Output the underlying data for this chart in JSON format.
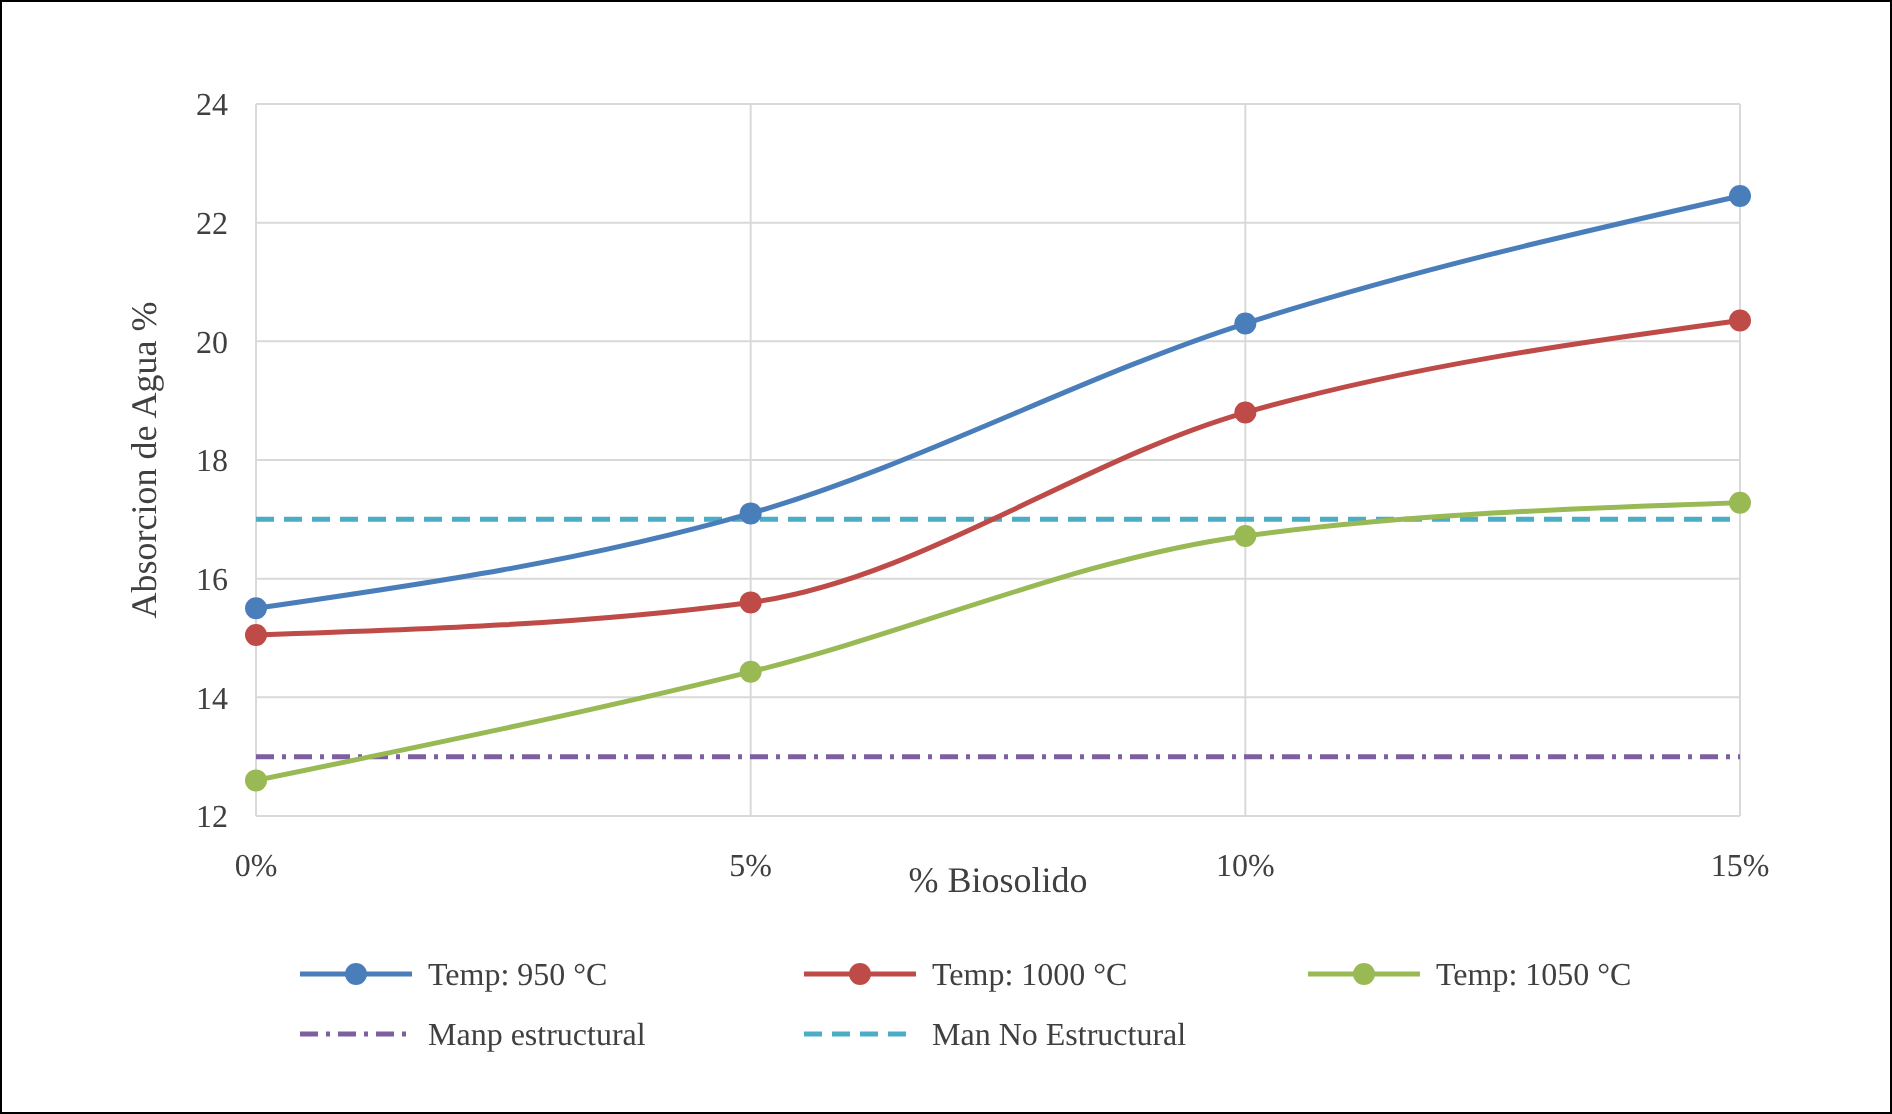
{
  "chart_data": {
    "type": "line",
    "xlabel": "% Biosolido",
    "ylabel": "Absorcion de Agua %",
    "x": [
      0,
      5,
      10,
      15
    ],
    "series": [
      {
        "name": "Temp: 950 °C",
        "color": "#4a7ebb",
        "values": [
          15.5,
          17.1,
          20.3,
          22.45
        ]
      },
      {
        "name": "Temp: 1000 °C",
        "color": "#be4b48",
        "values": [
          15.05,
          15.6,
          18.8,
          20.35
        ]
      },
      {
        "name": "Temp: 1050 °C",
        "color": "#98b954",
        "values": [
          12.6,
          14.43,
          16.72,
          17.28
        ]
      }
    ],
    "ref_lines": [
      {
        "axis": "y",
        "value": 13,
        "label": "Manp estructural",
        "color": "#7d5fa0",
        "line_style": "dashdot"
      },
      {
        "axis": "y",
        "value": 17,
        "label": "Man No Estructural",
        "color": "#4bacc6",
        "line_style": "dashed"
      }
    ],
    "xlim": [
      0,
      15
    ],
    "xticks": [
      {
        "value": 0,
        "label": "0%"
      },
      {
        "value": 5,
        "label": "5%"
      },
      {
        "value": 10,
        "label": "10%"
      },
      {
        "value": 15,
        "label": "15%"
      }
    ],
    "ylim": [
      12,
      24
    ],
    "yticks": [
      12,
      14,
      16,
      18,
      20,
      22,
      24
    ],
    "grid": true,
    "legend": "bottom",
    "marker": "circle",
    "line_style": "solid"
  }
}
